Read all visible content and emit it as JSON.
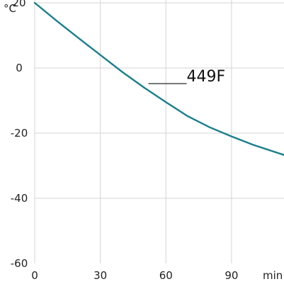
{
  "chart_data": {
    "type": "line",
    "title": "",
    "xlabel": "min",
    "ylabel": "°C",
    "xlim": [
      0,
      114
    ],
    "ylim": [
      -60,
      20
    ],
    "x_ticks": [
      0,
      30,
      60,
      90
    ],
    "y_ticks": [
      -60,
      -40,
      -20,
      0,
      20
    ],
    "grid": true,
    "series": [
      {
        "name": "449F",
        "color": "#1a7f8e",
        "x": [
          0,
          10,
          20,
          30,
          40,
          50,
          60,
          70,
          80,
          90,
          100,
          114
        ],
        "y": [
          20,
          14.5,
          9.2,
          4.0,
          -1.2,
          -6.0,
          -10.5,
          -14.8,
          -18.2,
          -21.0,
          -23.6,
          -26.7
        ]
      }
    ],
    "annotations": [
      {
        "text": "449F",
        "x": 52,
        "y": -4.8
      }
    ]
  }
}
